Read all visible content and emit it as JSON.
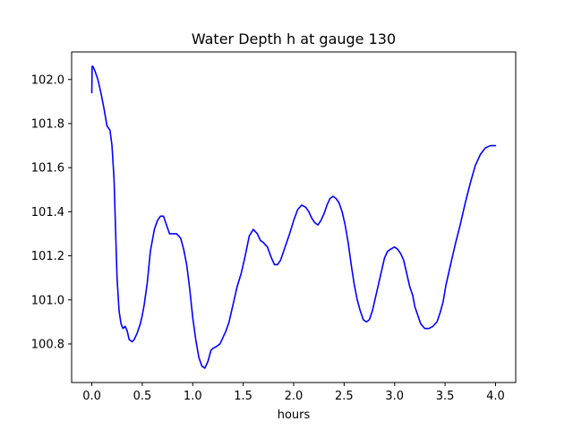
{
  "chart_data": {
    "type": "line",
    "title": "Water Depth h at gauge 130",
    "xlabel": "hours",
    "ylabel": "",
    "xlim": [
      -0.2,
      4.2
    ],
    "ylim": [
      100.625,
      102.125
    ],
    "xticks": [
      0.0,
      0.5,
      1.0,
      1.5,
      2.0,
      2.5,
      3.0,
      3.5,
      4.0
    ],
    "xtick_labels": [
      "0.0",
      "0.5",
      "1.0",
      "1.5",
      "2.0",
      "2.5",
      "3.0",
      "3.5",
      "4.0"
    ],
    "yticks": [
      100.8,
      101.0,
      101.2,
      101.4,
      101.6,
      101.8,
      102.0
    ],
    "ytick_labels": [
      "100.8",
      "101.0",
      "101.2",
      "101.4",
      "101.6",
      "101.8",
      "102.0"
    ],
    "grid": false,
    "series": [
      {
        "color": "#0000ff",
        "x": [
          0.0,
          0.003,
          0.01,
          0.03,
          0.06,
          0.09,
          0.12,
          0.15,
          0.18,
          0.2,
          0.22,
          0.25,
          0.27,
          0.29,
          0.31,
          0.33,
          0.35,
          0.37,
          0.4,
          0.42,
          0.45,
          0.48,
          0.5,
          0.52,
          0.55,
          0.58,
          0.62,
          0.65,
          0.68,
          0.71,
          0.74,
          0.77,
          0.8,
          0.84,
          0.88,
          0.91,
          0.94,
          0.97,
          1.0,
          1.03,
          1.06,
          1.09,
          1.12,
          1.15,
          1.18,
          1.2,
          1.22,
          1.24,
          1.27,
          1.3,
          1.33,
          1.36,
          1.4,
          1.44,
          1.48,
          1.52,
          1.56,
          1.6,
          1.64,
          1.67,
          1.7,
          1.74,
          1.78,
          1.81,
          1.84,
          1.87,
          1.9,
          1.93,
          1.96,
          2.0,
          2.04,
          2.08,
          2.12,
          2.15,
          2.18,
          2.21,
          2.24,
          2.27,
          2.3,
          2.33,
          2.36,
          2.39,
          2.42,
          2.45,
          2.48,
          2.51,
          2.54,
          2.57,
          2.6,
          2.63,
          2.66,
          2.69,
          2.72,
          2.75,
          2.78,
          2.81,
          2.84,
          2.87,
          2.9,
          2.93,
          2.96,
          3.0,
          3.03,
          3.06,
          3.09,
          3.12,
          3.15,
          3.18,
          3.2,
          3.23,
          3.26,
          3.3,
          3.34,
          3.38,
          3.42,
          3.45,
          3.48,
          3.51,
          3.55,
          3.6,
          3.65,
          3.7,
          3.75,
          3.8,
          3.85,
          3.9,
          3.95,
          4.0
        ],
        "y": [
          101.94,
          102.06,
          102.06,
          102.04,
          102.0,
          101.94,
          101.87,
          101.79,
          101.77,
          101.7,
          101.55,
          101.1,
          100.95,
          100.89,
          100.87,
          100.88,
          100.86,
          100.82,
          100.81,
          100.82,
          100.85,
          100.89,
          100.93,
          100.98,
          101.08,
          101.22,
          101.32,
          101.36,
          101.38,
          101.38,
          101.34,
          101.3,
          101.3,
          101.3,
          101.28,
          101.23,
          101.16,
          101.05,
          100.92,
          100.82,
          100.74,
          100.7,
          100.69,
          100.72,
          100.77,
          100.78,
          100.785,
          100.79,
          100.8,
          100.83,
          100.86,
          100.9,
          100.98,
          101.06,
          101.12,
          101.2,
          101.29,
          101.32,
          101.3,
          101.27,
          101.26,
          101.24,
          101.19,
          101.16,
          101.16,
          101.18,
          101.22,
          101.26,
          101.3,
          101.36,
          101.41,
          101.43,
          101.42,
          101.4,
          101.37,
          101.35,
          101.34,
          101.36,
          101.39,
          101.43,
          101.46,
          101.47,
          101.46,
          101.44,
          101.4,
          101.34,
          101.26,
          101.16,
          101.07,
          101.0,
          100.95,
          100.91,
          100.9,
          100.91,
          100.95,
          101.01,
          101.07,
          101.13,
          101.19,
          101.22,
          101.23,
          101.24,
          101.23,
          101.21,
          101.18,
          101.12,
          101.06,
          101.02,
          100.97,
          100.93,
          100.89,
          100.87,
          100.87,
          100.88,
          100.9,
          100.94,
          100.99,
          101.07,
          101.15,
          101.25,
          101.34,
          101.44,
          101.53,
          101.61,
          101.66,
          101.69,
          101.7,
          101.7
        ]
      }
    ]
  }
}
